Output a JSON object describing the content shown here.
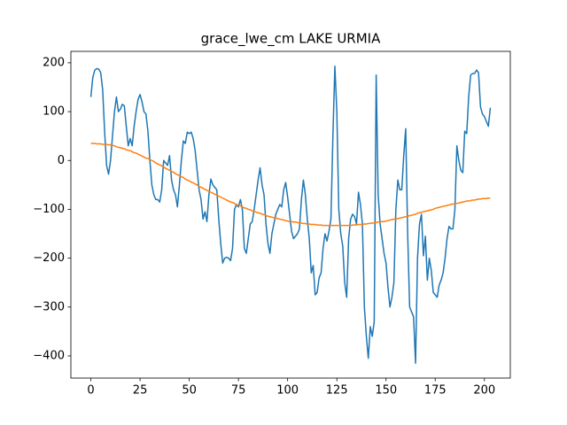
{
  "chart_data": {
    "type": "line",
    "title": "grace_lwe_cm LAKE URMIA",
    "x": [
      0,
      1,
      2,
      3,
      4,
      5,
      6,
      7,
      8,
      9,
      10,
      11,
      12,
      13,
      14,
      15,
      16,
      17,
      18,
      19,
      20,
      21,
      22,
      23,
      24,
      25,
      26,
      27,
      28,
      29,
      30,
      31,
      32,
      33,
      34,
      35,
      36,
      37,
      38,
      39,
      40,
      41,
      42,
      43,
      44,
      45,
      46,
      47,
      48,
      49,
      50,
      51,
      52,
      53,
      54,
      55,
      56,
      57,
      58,
      59,
      60,
      61,
      62,
      63,
      64,
      65,
      66,
      67,
      68,
      69,
      70,
      71,
      72,
      73,
      74,
      75,
      76,
      77,
      78,
      79,
      80,
      81,
      82,
      83,
      84,
      85,
      86,
      87,
      88,
      89,
      90,
      91,
      92,
      93,
      94,
      95,
      96,
      97,
      98,
      99,
      100,
      101,
      102,
      103,
      104,
      105,
      106,
      107,
      108,
      109,
      110,
      111,
      112,
      113,
      114,
      115,
      116,
      117,
      118,
      119,
      120,
      121,
      122,
      123,
      124,
      125,
      126,
      127,
      128,
      129,
      130,
      131,
      132,
      133,
      134,
      135,
      136,
      137,
      138,
      139,
      140,
      141,
      142,
      143,
      144,
      145,
      146,
      147,
      148,
      149,
      150,
      151,
      152,
      153,
      154,
      155,
      156,
      157,
      158,
      159,
      160,
      161,
      162,
      163,
      164,
      165,
      166,
      167,
      168,
      169,
      170,
      171,
      172,
      173,
      174,
      175,
      176,
      177,
      178,
      179,
      180,
      181,
      182,
      183,
      184,
      185,
      186,
      187,
      188,
      189,
      190,
      191,
      192,
      193,
      194,
      195,
      196,
      197,
      198,
      199,
      200,
      201,
      202,
      203
    ],
    "series": [
      {
        "color": "#1f77b4",
        "values": [
          130,
          170,
          185,
          188,
          187,
          180,
          145,
          60,
          -10,
          -28,
          0,
          50,
          100,
          130,
          100,
          105,
          115,
          112,
          70,
          30,
          45,
          30,
          70,
          100,
          125,
          135,
          120,
          100,
          95,
          60,
          0,
          -50,
          -70,
          -80,
          -80,
          -85,
          -60,
          0,
          -5,
          -10,
          10,
          -40,
          -60,
          -70,
          -95,
          -50,
          0,
          40,
          35,
          58,
          55,
          58,
          45,
          20,
          -20,
          -60,
          -80,
          -120,
          -105,
          -125,
          -70,
          -38,
          -50,
          -55,
          -60,
          -120,
          -170,
          -210,
          -200,
          -198,
          -200,
          -205,
          -180,
          -100,
          -90,
          -95,
          -80,
          -100,
          -180,
          -190,
          -160,
          -130,
          -125,
          -100,
          -70,
          -40,
          -15,
          -50,
          -70,
          -130,
          -170,
          -190,
          -150,
          -130,
          -110,
          -100,
          -90,
          -95,
          -60,
          -45,
          -75,
          -110,
          -145,
          -160,
          -155,
          -150,
          -140,
          -80,
          -40,
          -70,
          -120,
          -160,
          -230,
          -215,
          -275,
          -270,
          -240,
          -230,
          -180,
          -150,
          -165,
          -145,
          -120,
          50,
          193,
          100,
          -100,
          -150,
          -175,
          -250,
          -280,
          -160,
          -120,
          -110,
          -115,
          -130,
          -65,
          -90,
          -130,
          -300,
          -360,
          -405,
          -340,
          -360,
          -330,
          175,
          -70,
          -130,
          -160,
          -190,
          -210,
          -260,
          -300,
          -280,
          -250,
          -100,
          -40,
          -60,
          -60,
          10,
          65,
          -150,
          -300,
          -310,
          -320,
          -415,
          -200,
          -130,
          -110,
          -195,
          -155,
          -245,
          -200,
          -225,
          -270,
          -275,
          -280,
          -255,
          -245,
          -230,
          -200,
          -160,
          -135,
          -140,
          -140,
          -100,
          30,
          0,
          -20,
          -25,
          60,
          55,
          130,
          175,
          178,
          178,
          185,
          180,
          110,
          95,
          90,
          80,
          70,
          108
        ]
      },
      {
        "color": "#ff7f0e",
        "values": [
          35,
          35,
          35,
          34,
          34,
          34,
          33,
          33,
          33,
          32,
          32,
          31,
          30,
          28,
          27,
          26,
          25,
          24,
          22,
          21,
          20,
          18,
          16,
          15,
          13,
          11,
          9,
          7,
          5,
          4,
          2,
          0,
          -2,
          -5,
          -7,
          -9,
          -11,
          -13,
          -16,
          -18,
          -20,
          -22,
          -24,
          -27,
          -29,
          -31,
          -33,
          -35,
          -38,
          -40,
          -42,
          -44,
          -46,
          -48,
          -50,
          -53,
          -55,
          -57,
          -59,
          -61,
          -63,
          -65,
          -67,
          -69,
          -71,
          -73,
          -75,
          -77,
          -79,
          -81,
          -83,
          -85,
          -86,
          -88,
          -90,
          -92,
          -93,
          -95,
          -97,
          -98,
          -100,
          -101,
          -103,
          -104,
          -106,
          -107,
          -108,
          -110,
          -111,
          -113,
          -114,
          -115,
          -116,
          -117,
          -118,
          -119,
          -120,
          -121,
          -122,
          -123,
          -124,
          -125,
          -125,
          -126,
          -126,
          -127,
          -128,
          -128,
          -129,
          -129,
          -130,
          -130,
          -131,
          -131,
          -131,
          -132,
          -132,
          -132,
          -133,
          -133,
          -133,
          -133,
          -133,
          -133,
          -133,
          -133,
          -133,
          -133,
          -133,
          -133,
          -133,
          -133,
          -133,
          -132,
          -132,
          -132,
          -131,
          -131,
          -131,
          -130,
          -130,
          -129,
          -129,
          -128,
          -128,
          -127,
          -126,
          -126,
          -125,
          -125,
          -124,
          -123,
          -122,
          -121,
          -120,
          -120,
          -119,
          -118,
          -117,
          -116,
          -115,
          -114,
          -113,
          -112,
          -111,
          -110,
          -108,
          -107,
          -106,
          -105,
          -104,
          -103,
          -102,
          -101,
          -100,
          -98,
          -97,
          -96,
          -95,
          -94,
          -93,
          -92,
          -91,
          -90,
          -89,
          -89,
          -88,
          -87,
          -86,
          -85,
          -84,
          -83,
          -83,
          -82,
          -81,
          -81,
          -80,
          -79,
          -79,
          -78,
          -78,
          -78,
          -77,
          -77
        ]
      }
    ],
    "xlim": [
      -10.15,
      213.15
    ],
    "ylim": [
      -445.4,
      223.4
    ],
    "xticks": [
      0,
      25,
      50,
      75,
      100,
      125,
      150,
      175,
      200
    ],
    "yticks": [
      {
        "value": -400,
        "label": "−400"
      },
      {
        "value": -300,
        "label": "−300"
      },
      {
        "value": -200,
        "label": "−200"
      },
      {
        "value": -100,
        "label": "−100"
      },
      0,
      100,
      200
    ]
  }
}
